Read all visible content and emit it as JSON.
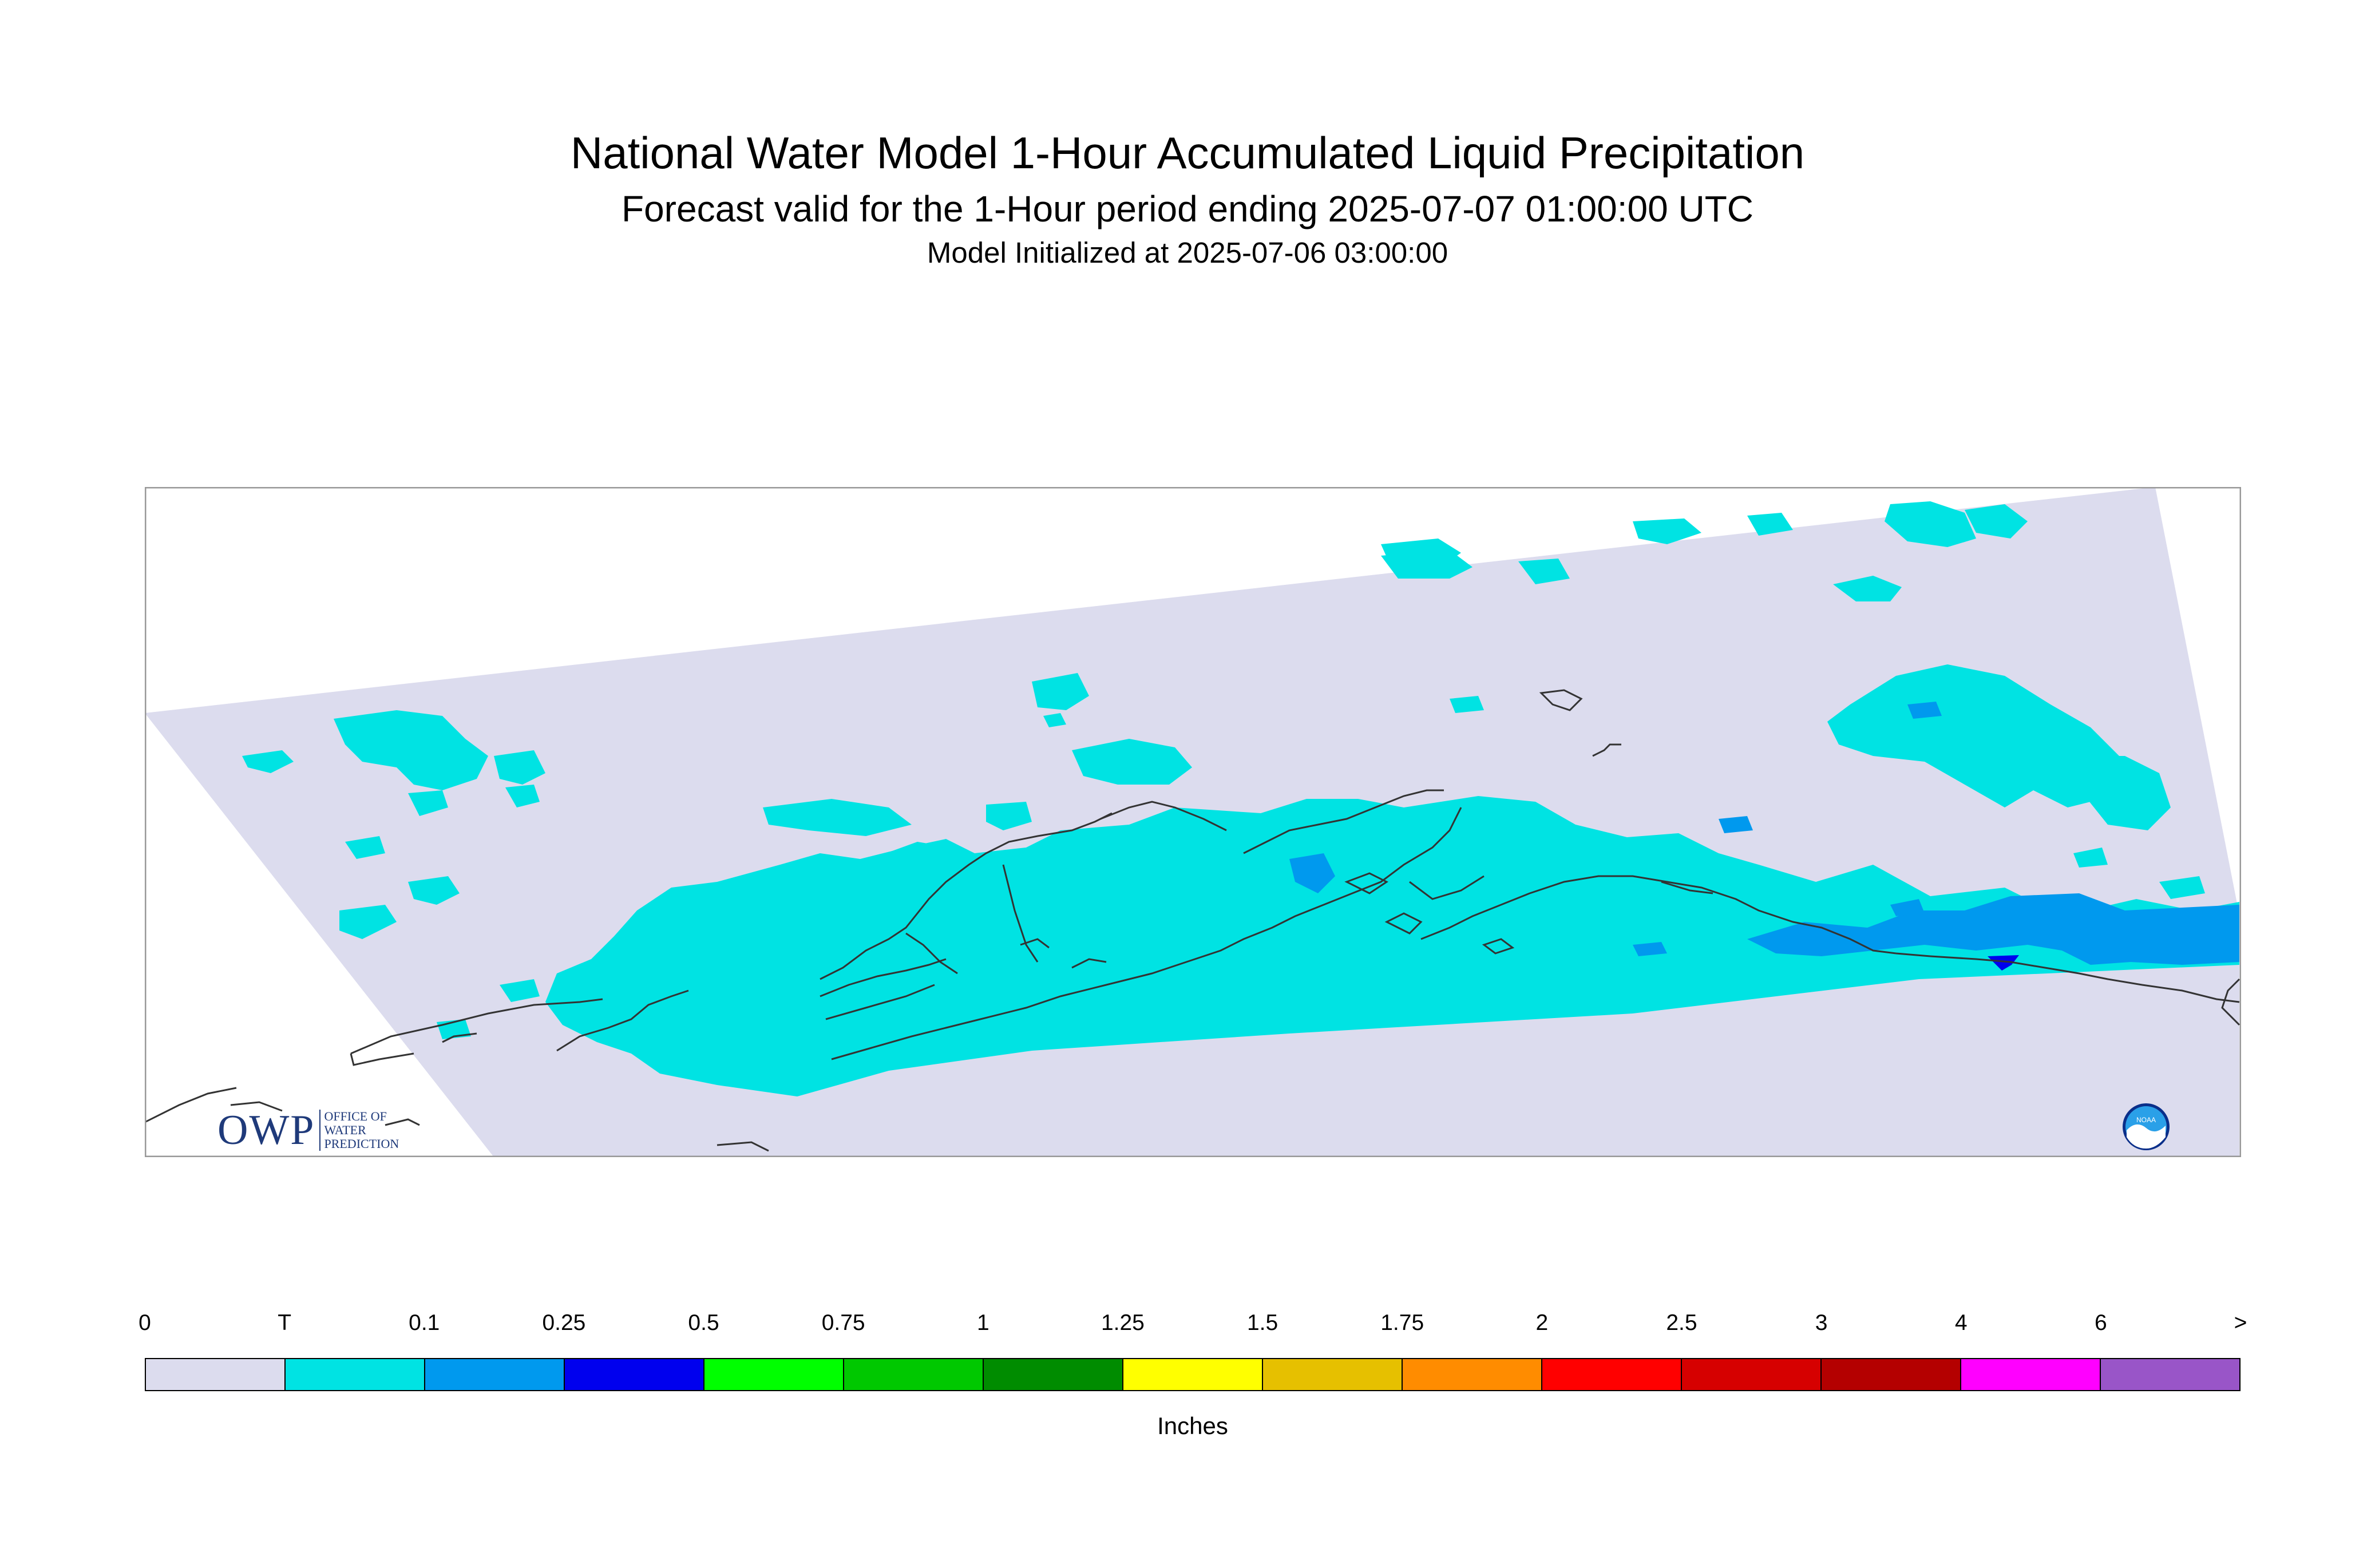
{
  "header": {
    "title": "National Water Model 1-Hour Accumulated Liquid Precipitation",
    "subtitle": "Forecast valid for the 1-Hour period ending 2025-07-07 01:00:00 UTC",
    "init": "Model Initialized at 2025-07-06 03:00:00"
  },
  "map": {
    "domain_color": "#dcdcee",
    "trace_color": "#00e3e3",
    "light_color": "#0099ee",
    "moderate_color": "#0000ee",
    "coastline_color": "#333333"
  },
  "logos": {
    "owp_text": "OWP",
    "owp_sub": [
      "OFFICE OF",
      "WATER",
      "PREDICTION"
    ],
    "noaa_text": "NOAA"
  },
  "legend": {
    "units": "Inches",
    "labels": [
      "0",
      "T",
      "0.1",
      "0.25",
      "0.5",
      "0.75",
      "1",
      "1.25",
      "1.5",
      "1.75",
      "2",
      "2.5",
      "3",
      "4",
      "6",
      ">"
    ],
    "colors": [
      "#dcdcee",
      "#00e3e3",
      "#0099ee",
      "#0000ee",
      "#00ff00",
      "#00c800",
      "#008c00",
      "#ffff00",
      "#e6c000",
      "#ff8c00",
      "#ff0000",
      "#d60000",
      "#b40000",
      "#ff00ff",
      "#9955c8"
    ]
  }
}
